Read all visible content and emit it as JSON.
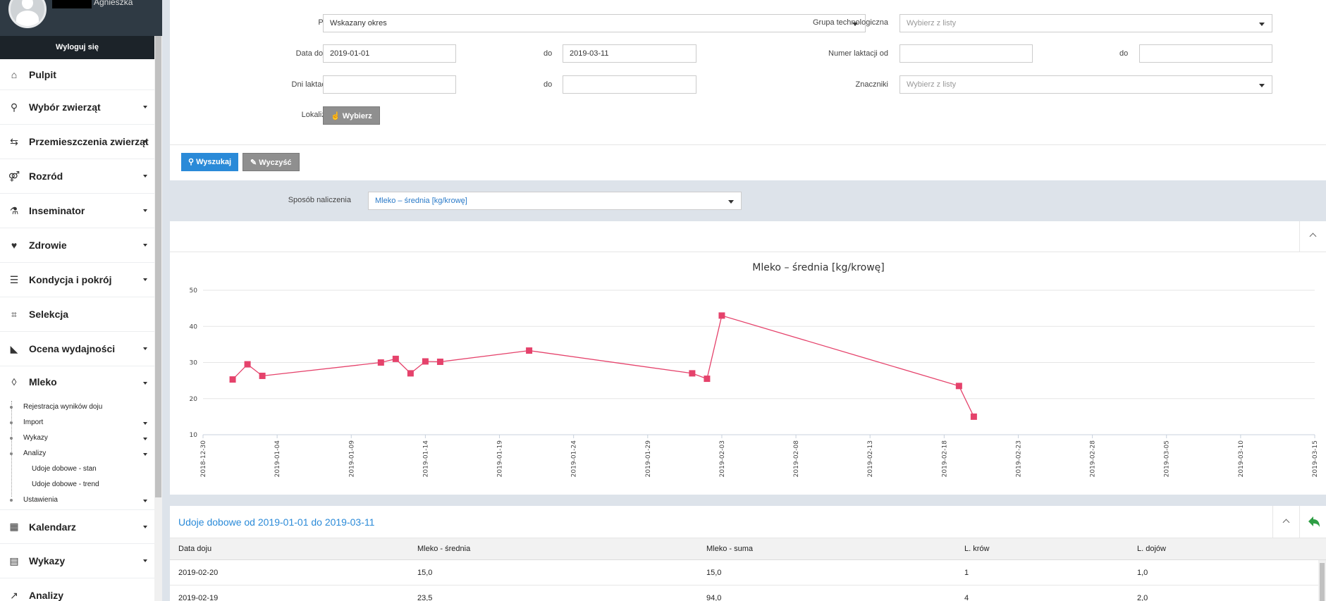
{
  "user": {
    "name": "Agnieszka",
    "logout_label": "Wyloguj się"
  },
  "sidebar": {
    "items": [
      {
        "label": "Pulpit",
        "icon": "home-icon",
        "glyph": "⌂",
        "caret": false
      },
      {
        "label": "Wybór zwierząt",
        "icon": "search-icon",
        "glyph": "⚲",
        "caret": true
      },
      {
        "label": "Przemieszczenia zwierząt",
        "icon": "signpost-icon",
        "glyph": "⇆",
        "caret": true
      },
      {
        "label": "Rozród",
        "icon": "gender-icon",
        "glyph": "⚤",
        "caret": true
      },
      {
        "label": "Inseminator",
        "icon": "flask-icon",
        "glyph": "⚗",
        "caret": true
      },
      {
        "label": "Zdrowie",
        "icon": "heartbeat-icon",
        "glyph": "♥",
        "caret": true
      },
      {
        "label": "Kondycja i pokrój",
        "icon": "list-icon",
        "glyph": "☰",
        "caret": true
      },
      {
        "label": "Selekcja",
        "icon": "tags-icon",
        "glyph": "⌗",
        "caret": false
      },
      {
        "label": "Ocena wydajności",
        "icon": "area-chart-icon",
        "glyph": "◣",
        "caret": true
      },
      {
        "label": "Mleko",
        "icon": "drop-icon",
        "glyph": "◊",
        "caret": true
      }
    ],
    "submenu": [
      {
        "label": "Rejestracja wyników doju",
        "caret": false,
        "level": 1
      },
      {
        "label": "Import",
        "caret": true,
        "level": 1
      },
      {
        "label": "Wykazy",
        "caret": true,
        "level": 1
      },
      {
        "label": "Analizy",
        "caret": true,
        "level": 1
      },
      {
        "label": "Udoje dobowe - stan",
        "caret": false,
        "level": 2
      },
      {
        "label": "Udoje dobowe - trend",
        "caret": false,
        "level": 2
      },
      {
        "label": "Ustawienia",
        "caret": true,
        "level": 1
      }
    ],
    "bottom_items": [
      {
        "label": "Kalendarz",
        "icon": "calendar-icon",
        "glyph": "▦",
        "caret": true
      },
      {
        "label": "Wykazy",
        "icon": "table-list-icon",
        "glyph": "▤",
        "caret": true
      },
      {
        "label": "Analizy",
        "icon": "chart-line-icon",
        "glyph": "↗",
        "caret": false
      }
    ]
  },
  "filters": {
    "show_label": "Pokaż",
    "show_value": "Wskazany okres",
    "group_label": "Grupa technologiczna",
    "group_placeholder": "Wybierz z listy",
    "date_from_label": "Data doju od",
    "date_from_value": "2019-01-01",
    "to_label": "do",
    "date_to_value": "2019-03-11",
    "lact_num_label": "Numer laktacji od",
    "lact_num_from": "",
    "lact_num_to": "",
    "lact_days_label": "Dni laktacji od",
    "lact_days_from": "",
    "lact_days_to": "",
    "markers_label": "Znaczniki",
    "markers_placeholder": "Wybierz z listy",
    "location_label": "Lokalizacja",
    "choose_label": "Wybierz",
    "search_label": "Wyszukaj",
    "clear_label": "Wyczyść"
  },
  "calc": {
    "label": "Sposób naliczenia",
    "value": "Mleko – średnia [kg/krowę]"
  },
  "chart_data": {
    "type": "line",
    "title": "Mleko – średnia [kg/krowę]",
    "xlabel": "",
    "ylabel": "",
    "ylim": [
      10,
      50
    ],
    "yticks": [
      10,
      20,
      30,
      40,
      50
    ],
    "xlim": [
      "2018-12-30",
      "2019-03-15"
    ],
    "xticks": [
      "2018-12-30",
      "2019-01-04",
      "2019-01-09",
      "2019-01-14",
      "2019-01-19",
      "2019-01-24",
      "2019-01-29",
      "2019-02-03",
      "2019-02-08",
      "2019-02-13",
      "2019-02-18",
      "2019-02-23",
      "2019-02-28",
      "2019-03-05",
      "2019-03-10",
      "2019-03-15"
    ],
    "color": "#e5426b",
    "grid": true,
    "series": [
      {
        "points": [
          {
            "x": "2019-01-01",
            "y": 25.3
          },
          {
            "x": "2019-01-02",
            "y": 29.5
          },
          {
            "x": "2019-01-03",
            "y": 26.3
          },
          {
            "x": "2019-01-11",
            "y": 30.0
          },
          {
            "x": "2019-01-12",
            "y": 31.0
          },
          {
            "x": "2019-01-13",
            "y": 27.0
          },
          {
            "x": "2019-01-14",
            "y": 30.3
          },
          {
            "x": "2019-01-15",
            "y": 30.2
          },
          {
            "x": "2019-01-21",
            "y": 33.3
          },
          {
            "x": "2019-02-01",
            "y": 27.0
          },
          {
            "x": "2019-02-02",
            "y": 25.5
          },
          {
            "x": "2019-02-03",
            "y": 43.0
          },
          {
            "x": "2019-02-19",
            "y": 23.5
          },
          {
            "x": "2019-02-20",
            "y": 15.0
          }
        ]
      }
    ]
  },
  "table": {
    "title": "Udoje dobowe od 2019-01-01 do 2019-03-11",
    "columns": [
      "Data doju",
      "Mleko - średnia",
      "Mleko - suma",
      "L. krów",
      "L. dojów"
    ],
    "rows": [
      [
        "2019-02-20",
        "15,0",
        "15,0",
        "1",
        "1,0"
      ],
      [
        "2019-02-19",
        "23,5",
        "94,0",
        "4",
        "2,0"
      ]
    ]
  }
}
